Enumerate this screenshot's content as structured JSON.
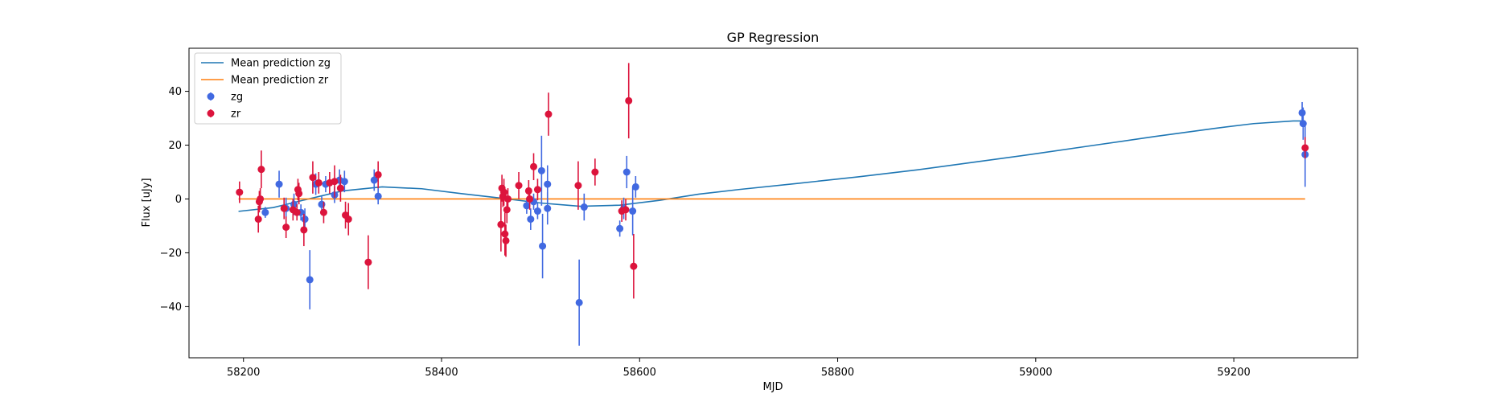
{
  "chart_data": {
    "type": "scatter",
    "title": "GP Regression",
    "xlabel": "MJD",
    "ylabel": "Flux [uJy]",
    "xlim": [
      58145,
      59325
    ],
    "ylim": [
      -59,
      56
    ],
    "xticks": [
      58200,
      58400,
      58600,
      58800,
      59000,
      59200
    ],
    "yticks": [
      -40,
      -20,
      0,
      20,
      40
    ],
    "grid": false,
    "legend_position": "top-left",
    "legend": [
      "Mean prediction zg",
      "Mean prediction zr",
      "zg",
      "zr"
    ],
    "lines": [
      {
        "name": "Mean prediction zg",
        "color": "#1f77b4",
        "x": [
          58195,
          58230,
          58260,
          58300,
          58340,
          58380,
          58420,
          58460,
          58500,
          58540,
          58580,
          58620,
          58660,
          58700,
          58760,
          58820,
          58880,
          58940,
          59000,
          59060,
          59120,
          59180,
          59220,
          59260,
          59272
        ],
        "y": [
          -4.6,
          -3.2,
          -0.5,
          3.0,
          4.5,
          3.8,
          2.0,
          0.3,
          -1.5,
          -2.7,
          -2.3,
          -0.5,
          1.8,
          3.5,
          5.8,
          8.2,
          10.8,
          13.8,
          16.8,
          20.0,
          23.2,
          26.2,
          28.0,
          29.0,
          29.0
        ]
      },
      {
        "name": "Mean prediction zr",
        "color": "#ff7f0e",
        "x": [
          58195,
          59272
        ],
        "y": [
          0,
          0
        ]
      }
    ],
    "series": [
      {
        "name": "zg",
        "color": "#4169e1",
        "points": [
          {
            "x": 58222,
            "y": -5,
            "err": 2
          },
          {
            "x": 58236,
            "y": 5.5,
            "err": 5
          },
          {
            "x": 58243,
            "y": -3.5,
            "err": 4
          },
          {
            "x": 58251,
            "y": -2,
            "err": 4
          },
          {
            "x": 58258,
            "y": -5,
            "err": 3
          },
          {
            "x": 58262,
            "y": -7.5,
            "err": 4
          },
          {
            "x": 58267,
            "y": -30,
            "err": 11
          },
          {
            "x": 58273,
            "y": 5.5,
            "err": 4
          },
          {
            "x": 58279,
            "y": -2,
            "err": 3
          },
          {
            "x": 58283,
            "y": 5.5,
            "err": 3
          },
          {
            "x": 58292,
            "y": 1.5,
            "err": 3
          },
          {
            "x": 58297,
            "y": 7,
            "err": 4
          },
          {
            "x": 58302,
            "y": 6.5,
            "err": 4
          },
          {
            "x": 58332,
            "y": 7,
            "err": 4
          },
          {
            "x": 58336,
            "y": 1,
            "err": 3
          },
          {
            "x": 58486,
            "y": -2.5,
            "err": 3
          },
          {
            "x": 58490,
            "y": -7.5,
            "err": 4
          },
          {
            "x": 58493,
            "y": -1,
            "err": 3
          },
          {
            "x": 58497,
            "y": -4.5,
            "err": 3
          },
          {
            "x": 58501,
            "y": 10.5,
            "err": 13
          },
          {
            "x": 58502,
            "y": -17.5,
            "err": 12
          },
          {
            "x": 58507,
            "y": -3.5,
            "err": 6
          },
          {
            "x": 58507,
            "y": 5.5,
            "err": 7
          },
          {
            "x": 58539,
            "y": -38.5,
            "err": 16
          },
          {
            "x": 58544,
            "y": -3,
            "err": 5
          },
          {
            "x": 58580,
            "y": -11,
            "err": 3
          },
          {
            "x": 58584,
            "y": -3.5,
            "err": 4
          },
          {
            "x": 58587,
            "y": 10,
            "err": 6
          },
          {
            "x": 58593,
            "y": -4.5,
            "err": 9
          },
          {
            "x": 58596,
            "y": 4.5,
            "err": 4
          },
          {
            "x": 59269,
            "y": 32,
            "err": 4
          },
          {
            "x": 59270,
            "y": 28,
            "err": 6
          },
          {
            "x": 59272,
            "y": 16.5,
            "err": 12
          }
        ]
      },
      {
        "name": "zr",
        "color": "#dc143c",
        "points": [
          {
            "x": 58196,
            "y": 2.5,
            "err": 4
          },
          {
            "x": 58215,
            "y": -7.5,
            "err": 5
          },
          {
            "x": 58216,
            "y": -1,
            "err": 4
          },
          {
            "x": 58217,
            "y": 0,
            "err": 4
          },
          {
            "x": 58218,
            "y": 11,
            "err": 7
          },
          {
            "x": 58241,
            "y": -3.5,
            "err": 4
          },
          {
            "x": 58243,
            "y": -10.5,
            "err": 4
          },
          {
            "x": 58250,
            "y": -4,
            "err": 4
          },
          {
            "x": 58254,
            "y": -5,
            "err": 3
          },
          {
            "x": 58255,
            "y": 3.5,
            "err": 4
          },
          {
            "x": 58256,
            "y": 2,
            "err": 4
          },
          {
            "x": 58261,
            "y": -11.5,
            "err": 6
          },
          {
            "x": 58270,
            "y": 8,
            "err": 6
          },
          {
            "x": 58276,
            "y": 6,
            "err": 4
          },
          {
            "x": 58281,
            "y": -5,
            "err": 4
          },
          {
            "x": 58287,
            "y": 6,
            "err": 4
          },
          {
            "x": 58292,
            "y": 6.5,
            "err": 6
          },
          {
            "x": 58298,
            "y": 4,
            "err": 5
          },
          {
            "x": 58303,
            "y": -6,
            "err": 5
          },
          {
            "x": 58306,
            "y": -7.5,
            "err": 6
          },
          {
            "x": 58326,
            "y": -23.5,
            "err": 10
          },
          {
            "x": 58336,
            "y": 9,
            "err": 5
          },
          {
            "x": 58460,
            "y": -9.5,
            "err": 10
          },
          {
            "x": 58461,
            "y": 4,
            "err": 5
          },
          {
            "x": 58462,
            "y": 1,
            "err": 4
          },
          {
            "x": 58463,
            "y": 2.5,
            "err": 5
          },
          {
            "x": 58464,
            "y": -13,
            "err": 8
          },
          {
            "x": 58465,
            "y": -15.5,
            "err": 6
          },
          {
            "x": 58466,
            "y": -4,
            "err": 5
          },
          {
            "x": 58467,
            "y": 0,
            "err": 4
          },
          {
            "x": 58478,
            "y": 5,
            "err": 5
          },
          {
            "x": 58488,
            "y": 3,
            "err": 4
          },
          {
            "x": 58489,
            "y": 0,
            "err": 4
          },
          {
            "x": 58493,
            "y": 12,
            "err": 5
          },
          {
            "x": 58497,
            "y": 3.5,
            "err": 4
          },
          {
            "x": 58508,
            "y": 31.5,
            "err": 8
          },
          {
            "x": 58538,
            "y": 5,
            "err": 9
          },
          {
            "x": 58555,
            "y": 10,
            "err": 5
          },
          {
            "x": 58582,
            "y": -4.5,
            "err": 4
          },
          {
            "x": 58586,
            "y": -4,
            "err": 4
          },
          {
            "x": 58589,
            "y": 36.5,
            "err": 14
          },
          {
            "x": 58594,
            "y": -25,
            "err": 12
          },
          {
            "x": 59272,
            "y": 19,
            "err": 4
          }
        ]
      }
    ]
  }
}
